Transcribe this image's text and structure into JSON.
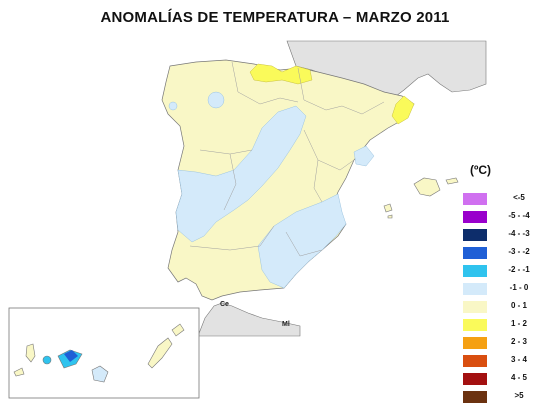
{
  "title": "ANOMALÍAS DE TEMPERATURA – MARZO 2011",
  "legend": {
    "unit": "(ºC)",
    "items": [
      {
        "label": "<-5",
        "color": "#d070f0"
      },
      {
        "label": "-5 - -4",
        "color": "#9900cc"
      },
      {
        "label": "-4 - -3",
        "color": "#0d2d6b"
      },
      {
        "label": "-3 - -2",
        "color": "#1f5fd6"
      },
      {
        "label": "-2 - -1",
        "color": "#2fc3ee"
      },
      {
        "label": "-1 - 0",
        "color": "#d4eafa"
      },
      {
        "label": "0 - 1",
        "color": "#f9f7c6"
      },
      {
        "label": "1 - 2",
        "color": "#fafa5a"
      },
      {
        "label": "2 - 3",
        "color": "#f5a012"
      },
      {
        "label": "3 - 4",
        "color": "#d94e0f"
      },
      {
        "label": "4 - 5",
        "color": "#a31010"
      },
      {
        "label": ">5",
        "color": "#6b3210"
      }
    ]
  },
  "places": {
    "ceuta": "Ce",
    "melilla": "Ml"
  }
}
